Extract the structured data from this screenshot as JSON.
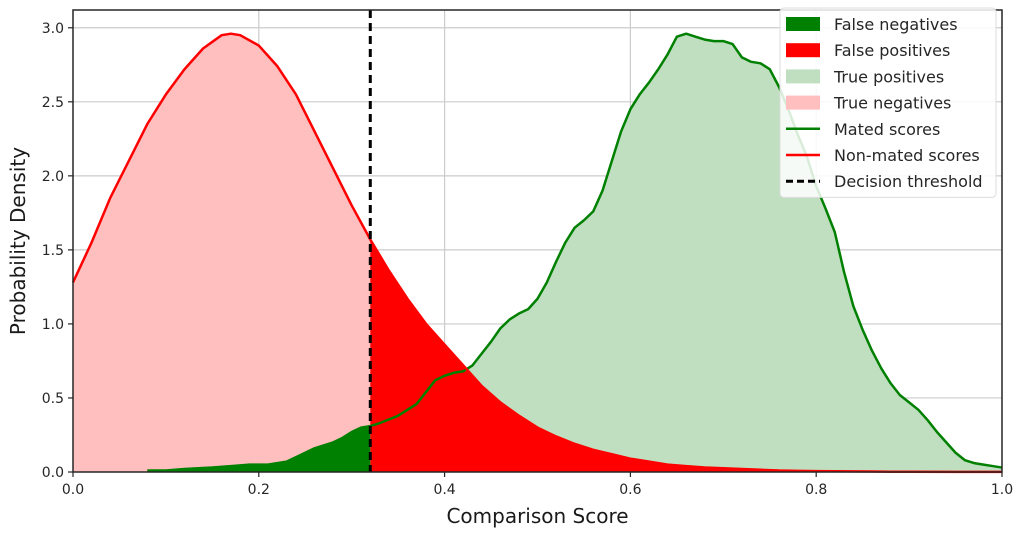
{
  "chart_data": {
    "type": "area",
    "xlabel": "Comparison Score",
    "ylabel": "Probability Density",
    "xlim": [
      0.0,
      1.0
    ],
    "ylim": [
      0.0,
      3.12
    ],
    "xticks": [
      0.0,
      0.2,
      0.4,
      0.6,
      0.8,
      1.0
    ],
    "xtick_labels": [
      "0.0",
      "0.2",
      "0.4",
      "0.6",
      "0.8",
      "1.0"
    ],
    "yticks": [
      0.0,
      0.5,
      1.0,
      1.5,
      2.0,
      2.5,
      3.0
    ],
    "ytick_labels": [
      "0.0",
      "0.5",
      "1.0",
      "1.5",
      "2.0",
      "2.5",
      "3.0"
    ],
    "grid": true,
    "legend_position": "top-right",
    "threshold": 0.32,
    "colors": {
      "mated": "#008000",
      "non_mated": "#ff0000",
      "true_positive_fill": "#c0dfc0",
      "true_negative_fill": "#ffbfbf",
      "false_negative_fill": "#008000",
      "false_positive_fill": "#ff0000",
      "threshold": "#000000",
      "grid": "#cccccc"
    },
    "legend": [
      {
        "label": "False negatives",
        "kind": "patch",
        "color": "#008000"
      },
      {
        "label": "False positives",
        "kind": "patch",
        "color": "#ff0000"
      },
      {
        "label": "True positives",
        "kind": "patch",
        "color": "#c0dfc0"
      },
      {
        "label": "True negatives",
        "kind": "patch",
        "color": "#ffbfbf"
      },
      {
        "label": "Mated scores",
        "kind": "line",
        "color": "#008000"
      },
      {
        "label": "Non-mated scores",
        "kind": "line",
        "color": "#ff0000"
      },
      {
        "label": "Decision threshold",
        "kind": "dashed",
        "color": "#000000"
      }
    ],
    "series": [
      {
        "name": "Mated scores",
        "x": [
          0.08,
          0.1,
          0.12,
          0.15,
          0.17,
          0.19,
          0.21,
          0.23,
          0.25,
          0.26,
          0.28,
          0.29,
          0.3,
          0.31,
          0.32,
          0.33,
          0.35,
          0.37,
          0.38,
          0.39,
          0.4,
          0.41,
          0.42,
          0.43,
          0.44,
          0.45,
          0.46,
          0.47,
          0.48,
          0.49,
          0.5,
          0.51,
          0.52,
          0.53,
          0.54,
          0.55,
          0.56,
          0.57,
          0.58,
          0.59,
          0.6,
          0.61,
          0.62,
          0.63,
          0.64,
          0.65,
          0.66,
          0.67,
          0.68,
          0.69,
          0.7,
          0.71,
          0.72,
          0.73,
          0.74,
          0.75,
          0.76,
          0.77,
          0.78,
          0.79,
          0.8,
          0.81,
          0.82,
          0.83,
          0.84,
          0.85,
          0.86,
          0.87,
          0.88,
          0.89,
          0.9,
          0.91,
          0.92,
          0.93,
          0.94,
          0.95,
          0.96,
          0.97,
          0.98,
          0.99,
          1.0
        ],
        "y": [
          0.01,
          0.01,
          0.02,
          0.03,
          0.04,
          0.05,
          0.05,
          0.07,
          0.13,
          0.16,
          0.2,
          0.23,
          0.27,
          0.3,
          0.31,
          0.33,
          0.38,
          0.46,
          0.54,
          0.62,
          0.65,
          0.67,
          0.68,
          0.72,
          0.8,
          0.88,
          0.97,
          1.03,
          1.07,
          1.1,
          1.17,
          1.28,
          1.42,
          1.55,
          1.65,
          1.7,
          1.76,
          1.9,
          2.1,
          2.3,
          2.45,
          2.55,
          2.63,
          2.72,
          2.82,
          2.94,
          2.96,
          2.94,
          2.92,
          2.91,
          2.91,
          2.89,
          2.8,
          2.77,
          2.76,
          2.72,
          2.6,
          2.45,
          2.28,
          2.13,
          1.93,
          1.78,
          1.62,
          1.35,
          1.12,
          0.96,
          0.82,
          0.7,
          0.6,
          0.52,
          0.47,
          0.42,
          0.35,
          0.27,
          0.2,
          0.13,
          0.08,
          0.06,
          0.05,
          0.04,
          0.03
        ]
      },
      {
        "name": "Non-mated scores",
        "x": [
          0.0,
          0.02,
          0.04,
          0.06,
          0.08,
          0.1,
          0.12,
          0.14,
          0.16,
          0.17,
          0.18,
          0.2,
          0.22,
          0.24,
          0.26,
          0.28,
          0.3,
          0.32,
          0.34,
          0.36,
          0.38,
          0.4,
          0.42,
          0.44,
          0.46,
          0.48,
          0.5,
          0.52,
          0.54,
          0.56,
          0.58,
          0.6,
          0.62,
          0.64,
          0.66,
          0.68,
          0.7,
          0.72,
          0.74,
          0.76,
          0.78,
          0.8,
          0.82,
          0.84,
          0.86,
          0.88,
          0.9,
          0.95,
          1.0
        ],
        "y": [
          1.28,
          1.55,
          1.85,
          2.1,
          2.35,
          2.55,
          2.72,
          2.86,
          2.95,
          2.96,
          2.95,
          2.88,
          2.74,
          2.55,
          2.3,
          2.05,
          1.8,
          1.57,
          1.36,
          1.17,
          1.0,
          0.86,
          0.72,
          0.58,
          0.47,
          0.38,
          0.3,
          0.24,
          0.19,
          0.15,
          0.12,
          0.09,
          0.07,
          0.05,
          0.04,
          0.03,
          0.025,
          0.02,
          0.015,
          0.01,
          0.008,
          0.006,
          0.005,
          0.004,
          0.003,
          0.002,
          0.002,
          0.001,
          0.001
        ]
      }
    ]
  }
}
